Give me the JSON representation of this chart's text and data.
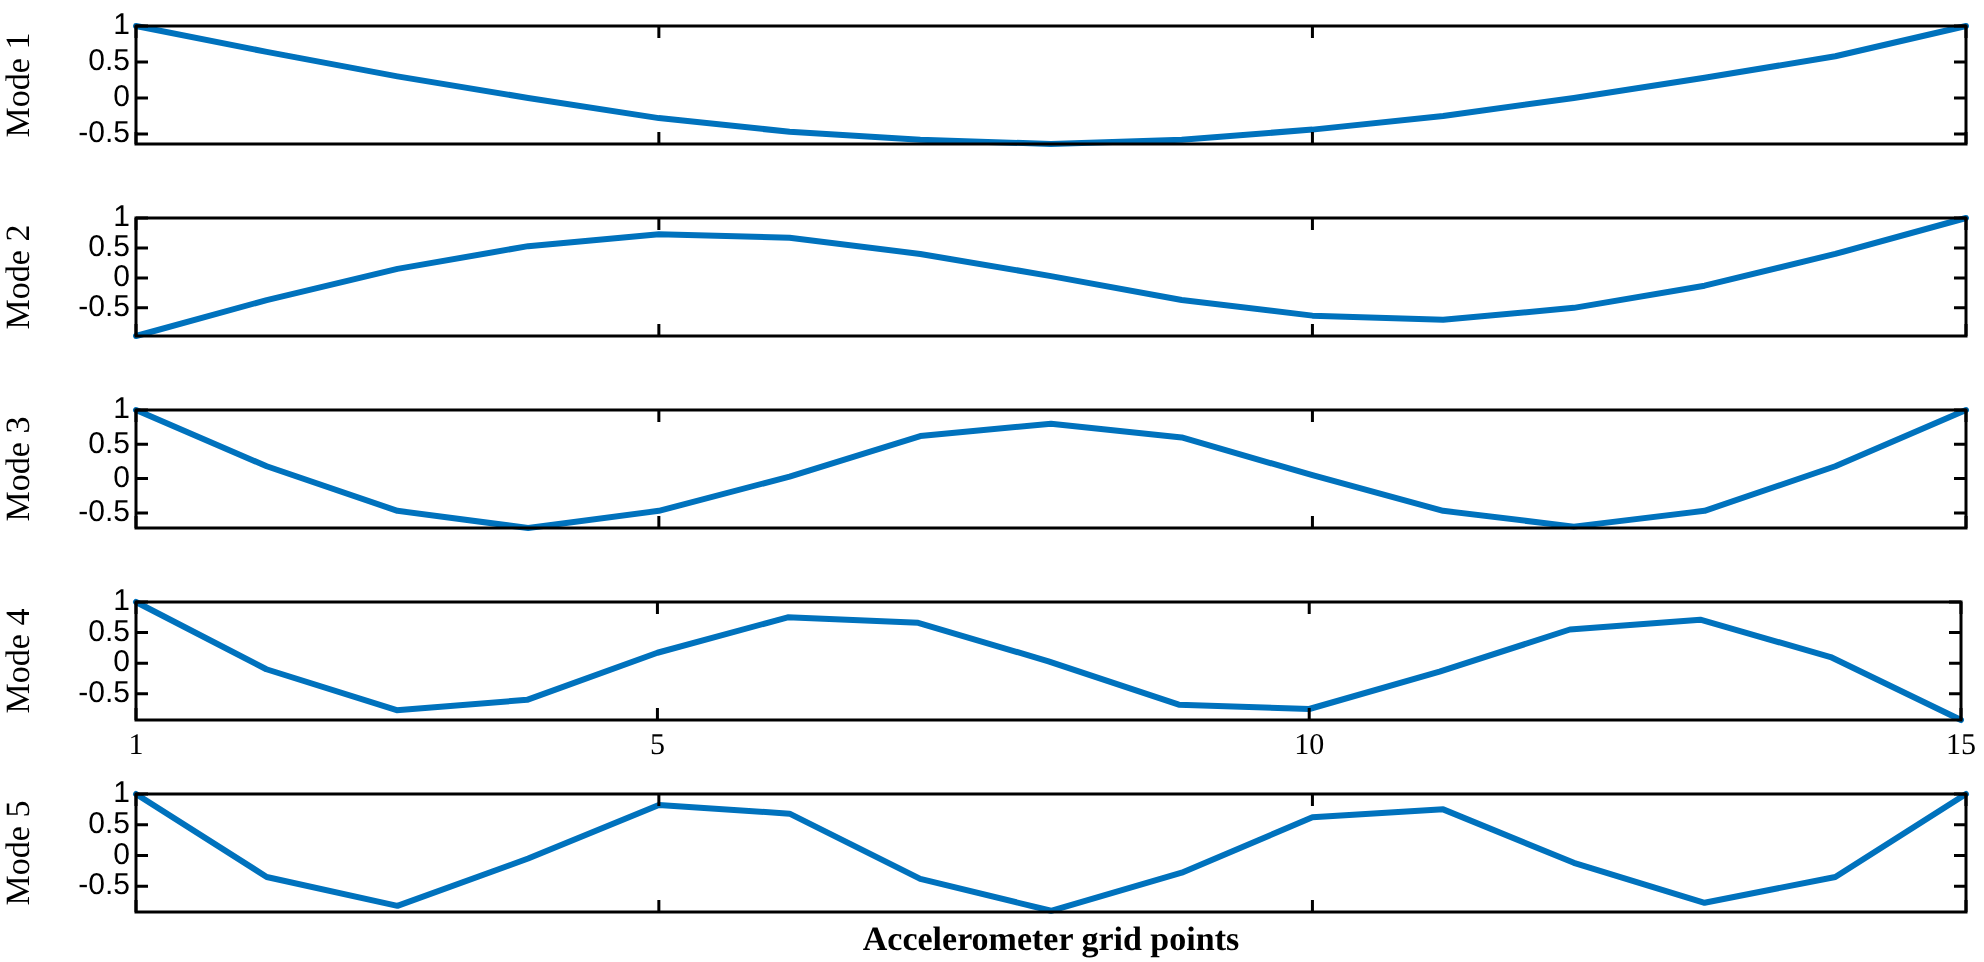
{
  "chart_data": [
    {
      "type": "line",
      "ylabel": "Mode 1",
      "x": [
        1,
        2,
        3,
        4,
        5,
        6,
        7,
        8,
        9,
        10,
        11,
        12,
        13,
        14,
        15
      ],
      "color": "#0072bd",
      "marker": "none",
      "grid": false,
      "tick_labels": "y",
      "xlim": [
        1,
        15
      ],
      "xticks": [
        {
          "value": 1,
          "label": null
        },
        {
          "value": 5,
          "label": null
        },
        {
          "value": 10,
          "label": null
        },
        {
          "value": 15,
          "label": null
        }
      ],
      "ylim": [
        -0.64,
        1
      ],
      "yticks": [
        -0.5,
        0,
        0.5,
        1
      ],
      "values": [
        1,
        0.64,
        0.3,
        0,
        -0.28,
        -0.47,
        -0.58,
        -0.64,
        -0.58,
        -0.44,
        -0.25,
        0,
        0.28,
        0.58,
        1
      ]
    },
    {
      "type": "line",
      "ylabel": "Mode 2",
      "x": [
        1,
        2,
        3,
        4,
        5,
        6,
        7,
        8,
        9,
        10,
        11,
        12,
        13,
        14,
        15
      ],
      "color": "#0072bd",
      "marker": "none",
      "grid": false,
      "tick_labels": "y",
      "xlim": [
        1,
        15
      ],
      "xticks": [
        {
          "value": 1,
          "label": null
        },
        {
          "value": 5,
          "label": null
        },
        {
          "value": 10,
          "label": null
        },
        {
          "value": 15,
          "label": null
        }
      ],
      "ylim": [
        -0.97,
        1
      ],
      "yticks": [
        -0.5,
        0,
        0.5,
        1
      ],
      "values": [
        -0.97,
        -0.37,
        0.15,
        0.53,
        0.73,
        0.67,
        0.4,
        0.03,
        -0.37,
        -0.63,
        -0.7,
        -0.5,
        -0.13,
        0.4,
        1
      ]
    },
    {
      "type": "line",
      "ylabel": "Mode 3",
      "x": [
        1,
        2,
        3,
        4,
        5,
        6,
        7,
        8,
        9,
        10,
        11,
        12,
        13,
        14,
        15
      ],
      "color": "#0072bd",
      "marker": "none",
      "grid": false,
      "tick_labels": "y",
      "xlim": [
        1,
        15
      ],
      "xticks": [
        {
          "value": 1,
          "label": null
        },
        {
          "value": 5,
          "label": null
        },
        {
          "value": 10,
          "label": null
        },
        {
          "value": 15,
          "label": null
        }
      ],
      "ylim": [
        -0.72,
        1
      ],
      "yticks": [
        -0.5,
        0,
        0.5,
        1
      ],
      "values": [
        1,
        0.18,
        -0.47,
        -0.72,
        -0.47,
        0.03,
        0.62,
        0.8,
        0.6,
        0.05,
        -0.47,
        -0.7,
        -0.47,
        0.18,
        1
      ]
    },
    {
      "type": "line",
      "ylabel": "Mode 4",
      "x": [
        1,
        2,
        3,
        4,
        5,
        6,
        7,
        8,
        9,
        10,
        11,
        12,
        13,
        14,
        15
      ],
      "color": "#0072bd",
      "marker": "none",
      "grid": false,
      "xlim": [
        1,
        15
      ],
      "xticks": [
        1,
        5,
        10,
        15
      ],
      "ylim": [
        -0.93,
        1
      ],
      "yticks": [
        -0.5,
        0,
        0.5,
        1
      ],
      "values": [
        1,
        -0.1,
        -0.77,
        -0.6,
        0.17,
        0.75,
        0.66,
        0.03,
        -0.68,
        -0.75,
        -0.14,
        0.55,
        0.71,
        0.1,
        -0.93
      ]
    },
    {
      "type": "line",
      "ylabel": "Mode 5",
      "xlabel": "Accelerometer grid points",
      "x": [
        1,
        2,
        3,
        4,
        5,
        6,
        7,
        8,
        9,
        10,
        11,
        12,
        13,
        14,
        15
      ],
      "color": "#0072bd",
      "marker": "none",
      "grid": false,
      "tick_labels": "y",
      "xlim": [
        1,
        15
      ],
      "xticks": [
        {
          "value": 1,
          "label": null
        },
        {
          "value": 5,
          "label": null
        },
        {
          "value": 10,
          "label": null
        },
        {
          "value": 15,
          "label": null
        }
      ],
      "ylim": [
        -0.92,
        1
      ],
      "yticks": [
        -0.5,
        0,
        0.5,
        1
      ],
      "values": [
        1,
        -0.35,
        -0.82,
        -0.05,
        0.82,
        0.68,
        -0.38,
        -0.9,
        -0.28,
        0.62,
        0.75,
        -0.12,
        -0.77,
        -0.35,
        1
      ]
    }
  ]
}
